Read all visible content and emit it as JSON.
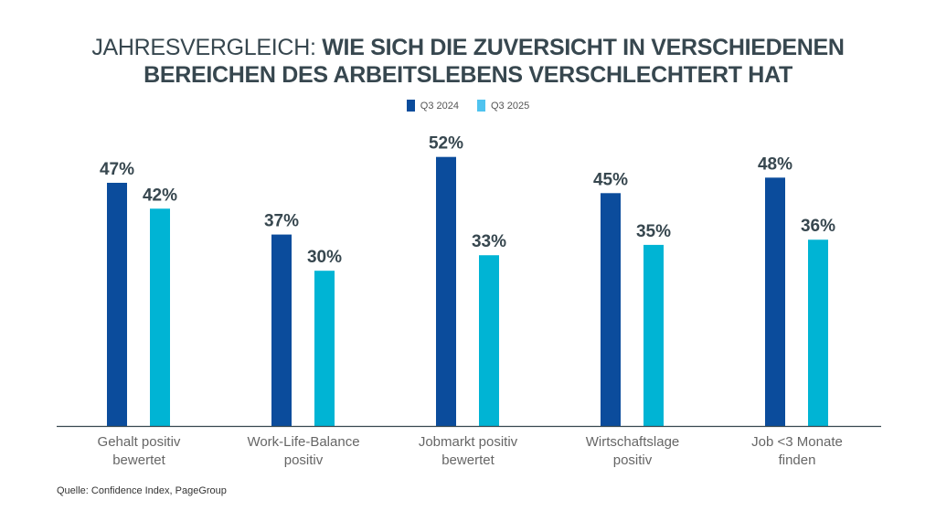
{
  "title": {
    "light": "JAHRESVERGLEICH: ",
    "bold_line1": "WIE SICH DIE ZUVERSICHT IN VERSCHIEDENEN",
    "bold_line2": "BEREICHEN DES ARBEITSLEBENS VERSCHLECHTERT HAT"
  },
  "source": "Quelle: Confidence Index, PageGroup",
  "chart_data": {
    "type": "bar",
    "title": "JAHRESVERGLEICH: WIE SICH DIE ZUVERSICHT IN VERSCHIEDENEN BEREICHEN DES ARBEITSLEBENS VERSCHLECHTERT HAT",
    "categories": [
      [
        "Gehalt positiv",
        "bewertet"
      ],
      [
        "Work-Life-Balance",
        "positiv"
      ],
      [
        "Jobmarkt positiv",
        "bewertet"
      ],
      [
        "Wirtschaftslage",
        "positiv"
      ],
      [
        "Job <3 Monate",
        "finden"
      ]
    ],
    "series": [
      {
        "name": "Q3 2024",
        "values": [
          47,
          37,
          52,
          45,
          48
        ],
        "color": "#0b4c9c",
        "legend_color": "#0b4c9c"
      },
      {
        "name": "Q3 2025",
        "values": [
          42,
          30,
          33,
          35,
          36
        ],
        "color": "#00b4d4",
        "legend_color": "#4fc3ef"
      }
    ],
    "unit": "%",
    "ylim": [
      0,
      55
    ],
    "grid": false,
    "legend": "top-center",
    "xlabel": "",
    "ylabel": ""
  }
}
